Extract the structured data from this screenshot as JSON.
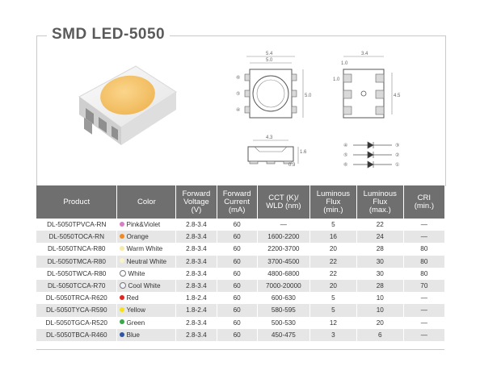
{
  "title": "SMD LED-5050",
  "drawing": {
    "top_w1": "5.4",
    "top_w2": "5.0",
    "side_h": "5.0",
    "right_w": "3.4",
    "right_t": "1.0",
    "right_p": "1.0",
    "right_h": "4.5",
    "bottom_w": "4.3",
    "bottom_h": "1.6",
    "bottom_t": "0.9",
    "pins_left": [
      "⑥",
      "⑤",
      "④"
    ],
    "pins_right": [
      "①",
      "②",
      "③"
    ]
  },
  "table": {
    "headers": [
      "Product",
      "Color",
      "Forward\nVoltage\n(V)",
      "Forward\nCurrent\n(mA)",
      "CCT (K)/\nWLD (nm)",
      "Luminous\nFlux\n(min.)",
      "Luminous\nFlux\n(max.)",
      "CRI\n(min.)"
    ],
    "rows": [
      {
        "product": "DL-5050TPVCA-RN",
        "color": "Pink&Violet",
        "dot": "#d77fc6",
        "voltage": "2.8-3.4",
        "current": "60",
        "cct": "—",
        "flux_min": "5",
        "flux_max": "22",
        "cri": "—"
      },
      {
        "product": "DL-5050TOCA-RN",
        "color": "Orange",
        "dot": "#f08a24",
        "voltage": "2.8-3.4",
        "current": "60",
        "cct": "1600-2200",
        "flux_min": "16",
        "flux_max": "24",
        "cri": "—"
      },
      {
        "product": "DL-5050TNCA-R80",
        "color": "Warm White",
        "dot": "#f7e9a6",
        "voltage": "2.8-3.4",
        "current": "60",
        "cct": "2200-3700",
        "flux_min": "20",
        "flux_max": "28",
        "cri": "80"
      },
      {
        "product": "DL-5050TMCA-R80",
        "color": "Neutral White",
        "dot": "#f8f3c8",
        "voltage": "2.8-3.4",
        "current": "60",
        "cct": "3700-4500",
        "flux_min": "22",
        "flux_max": "30",
        "cri": "80"
      },
      {
        "product": "DL-5050TWCA-R80",
        "color": "White",
        "dot": "#ffffff",
        "voltage": "2.8-3.4",
        "current": "60",
        "cct": "4800-6800",
        "flux_min": "22",
        "flux_max": "30",
        "cri": "80"
      },
      {
        "product": "DL-5050TCCA-R70",
        "color": "Cool White",
        "dot": "#f2f6fb",
        "voltage": "2.8-3.4",
        "current": "60",
        "cct": "7000-20000",
        "flux_min": "20",
        "flux_max": "28",
        "cri": "70"
      },
      {
        "product": "DL-5050TRCA-R620",
        "color": "Red",
        "dot": "#e0261f",
        "voltage": "1.8-2.4",
        "current": "60",
        "cct": "600-630",
        "flux_min": "5",
        "flux_max": "10",
        "cri": "—"
      },
      {
        "product": "DL-5050TYCA-R590",
        "color": "Yellow",
        "dot": "#f5e21b",
        "voltage": "1.8-2.4",
        "current": "60",
        "cct": "580-595",
        "flux_min": "5",
        "flux_max": "10",
        "cri": "—"
      },
      {
        "product": "DL-5050TGCA-R520",
        "color": "Green",
        "dot": "#3aa84a",
        "voltage": "2.8-3.4",
        "current": "60",
        "cct": "500-530",
        "flux_min": "12",
        "flux_max": "20",
        "cri": "—"
      },
      {
        "product": "DL-5050TBCA-R460",
        "color": "Blue",
        "dot": "#2e55a6",
        "voltage": "2.8-3.4",
        "current": "60",
        "cct": "450-475",
        "flux_min": "3",
        "flux_max": "6",
        "cri": "—"
      }
    ]
  }
}
